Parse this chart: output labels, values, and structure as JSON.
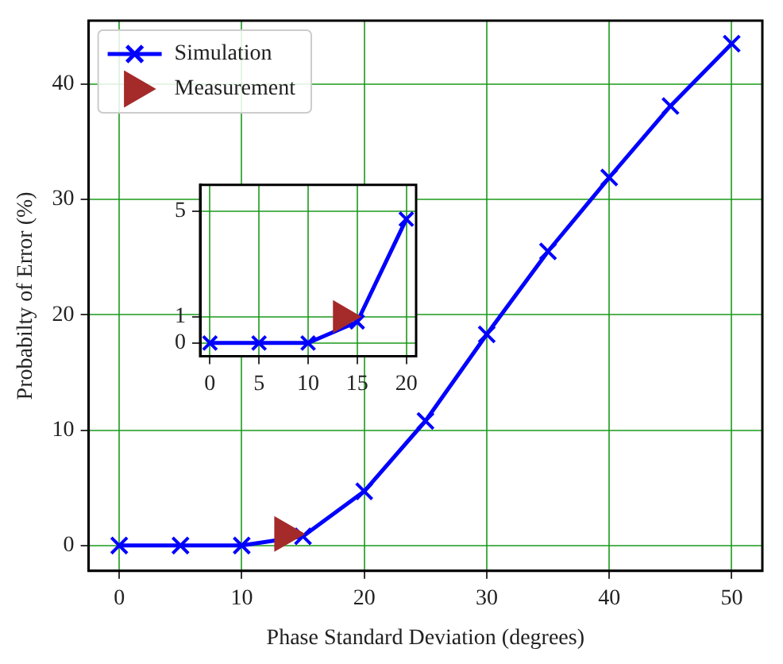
{
  "chart_data": [
    {
      "type": "line",
      "xlabel": "Phase Standard Deviation (degrees)",
      "ylabel": "Probabilty of Error (%)",
      "xlim": [
        -2.5,
        52.5
      ],
      "ylim": [
        -2.2,
        45.5
      ],
      "xticks": [
        0,
        10,
        20,
        30,
        40,
        50
      ],
      "yticks": [
        0,
        10,
        20,
        30,
        40
      ],
      "grid": true,
      "legend": "top left",
      "series": [
        {
          "name": "Simulation",
          "color": "#0000ff",
          "marker": "cross",
          "x": [
            0,
            5,
            10,
            15,
            20,
            25,
            30,
            35,
            40,
            45,
            50
          ],
          "values": [
            0,
            0,
            0,
            0.8,
            4.7,
            10.8,
            18.3,
            25.5,
            31.9,
            38.1,
            43.5
          ]
        },
        {
          "name": "Measurement",
          "type": "scatter",
          "color": "#a52a2a",
          "marker": "triangle",
          "x": [
            13.5
          ],
          "values": [
            1
          ]
        }
      ]
    },
    {
      "type": "line",
      "xlim": [
        -1,
        21
      ],
      "ylim": [
        -0.5,
        6
      ],
      "xticks": [
        0,
        5,
        10,
        15,
        20
      ],
      "yticks": [
        0,
        1,
        5
      ],
      "grid": true,
      "series": [
        {
          "color": "#0000ff",
          "marker": "cross",
          "x": [
            0,
            5,
            10,
            15,
            20
          ],
          "values": [
            0,
            0,
            0,
            0.8,
            4.7
          ]
        },
        {
          "type": "scatter",
          "color": "#a52a2a",
          "marker": "triangle",
          "x": [
            13.5
          ],
          "values": [
            1
          ]
        }
      ]
    }
  ]
}
